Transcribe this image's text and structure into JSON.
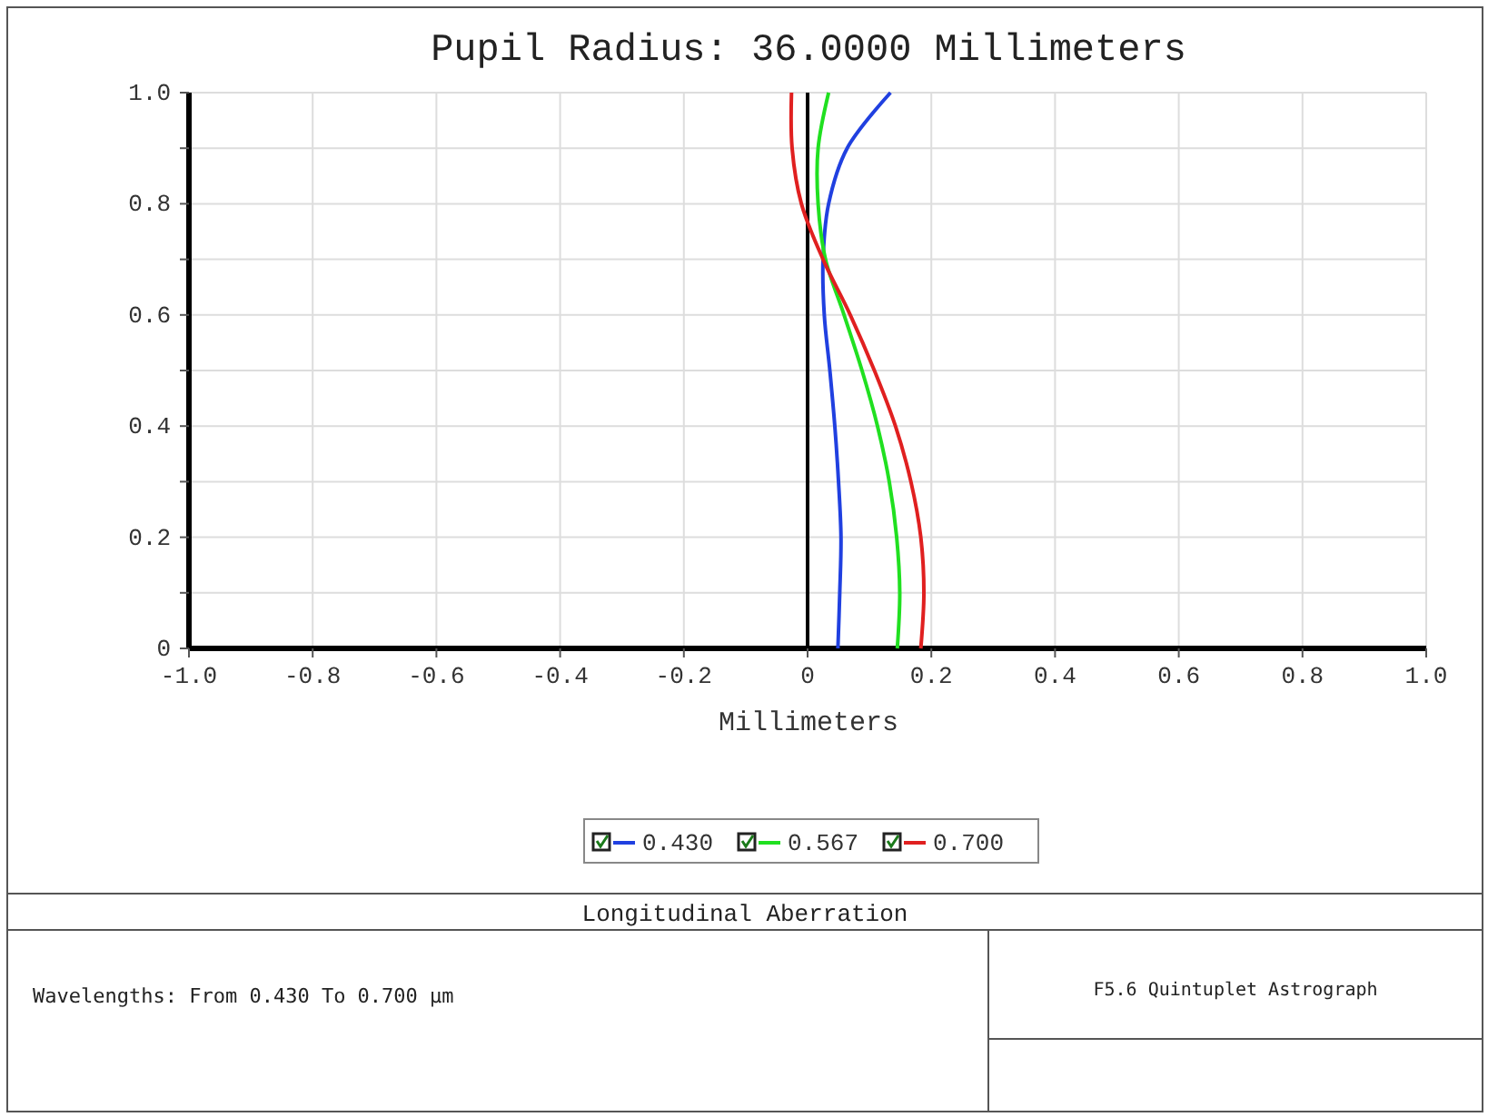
{
  "chart_data": {
    "type": "line",
    "title": "Pupil Radius: 36.0000 Millimeters",
    "xlabel": "Millimeters",
    "xlim": [
      -1,
      1
    ],
    "ylim": [
      0,
      1
    ],
    "xticks": [
      {
        "value": -1,
        "label": "-1.0"
      },
      -0.8,
      -0.6,
      -0.4,
      -0.2,
      0,
      0.2,
      0.4,
      0.6,
      0.8,
      {
        "value": 1,
        "label": "1.0"
      }
    ],
    "yticks": [
      0,
      {
        "value": 0.1,
        "label": null
      },
      0.2,
      {
        "value": 0.3,
        "label": null
      },
      0.4,
      {
        "value": 0.5,
        "label": null
      },
      0.6,
      {
        "value": 0.7,
        "label": null
      },
      0.8,
      {
        "value": 0.9,
        "label": null
      },
      {
        "value": 1,
        "label": "1.0"
      }
    ],
    "grid": true,
    "legend": "bottom",
    "marker": "none",
    "line_style": "solid",
    "ref_lines": [
      {
        "axis": "x",
        "value": 0,
        "color": "#000000"
      }
    ],
    "series": [
      {
        "name": "0.430",
        "color": "#2040e0",
        "x": [
          0.049,
          0.052,
          0.054,
          0.05,
          0.044,
          0.036,
          0.027,
          0.025,
          0.034,
          0.064,
          0.134
        ],
        "values": [
          0,
          0.1,
          0.2,
          0.3,
          0.4,
          0.5,
          0.6,
          0.7,
          0.8,
          0.9,
          1
        ]
      },
      {
        "name": "0.567",
        "color": "#20e020",
        "x": [
          0.145,
          0.149,
          0.144,
          0.132,
          0.113,
          0.088,
          0.059,
          0.029,
          0.017,
          0.017,
          0.034
        ],
        "values": [
          0,
          0.1,
          0.2,
          0.3,
          0.4,
          0.5,
          0.6,
          0.7,
          0.8,
          0.9,
          1
        ]
      },
      {
        "name": "0.700",
        "color": "#e02020",
        "x": [
          0.183,
          0.188,
          0.183,
          0.167,
          0.142,
          0.108,
          0.069,
          0.025,
          -0.01,
          -0.025,
          -0.026
        ],
        "values": [
          0,
          0.1,
          0.2,
          0.3,
          0.4,
          0.5,
          0.6,
          0.7,
          0.8,
          0.9,
          1
        ]
      }
    ],
    "annotations": [
      "Longitudinal Aberration",
      "Wavelengths: From 0.430 To 0.700 µm",
      "F5.6 Quintuplet Astrograph"
    ]
  }
}
